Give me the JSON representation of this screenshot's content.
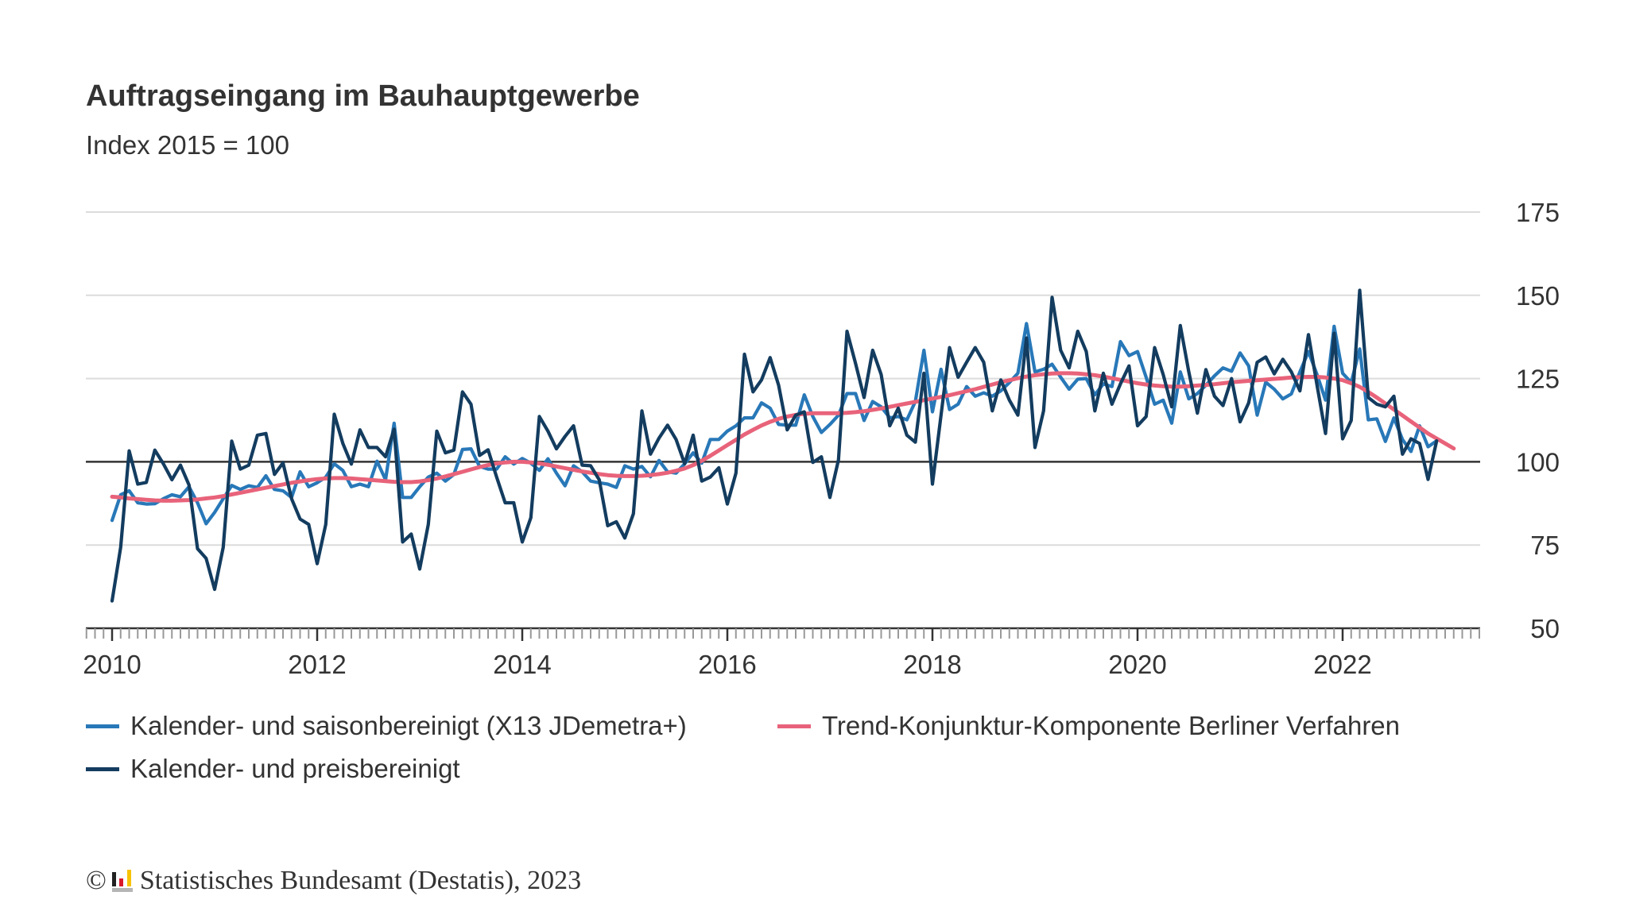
{
  "chart_data": {
    "type": "line",
    "title": "Auftragseingang im Bauhauptgewerbe",
    "subtitle": "Index 2015 = 100",
    "x_start": "2010-01",
    "x_end": "2022-12",
    "x_frequency": "monthly",
    "x_tick_labels": [
      "2010",
      "2012",
      "2014",
      "2016",
      "2018",
      "2020",
      "2022"
    ],
    "y_tick_labels": [
      "50",
      "75",
      "100",
      "125",
      "150",
      "175"
    ],
    "ylim": [
      50,
      175
    ],
    "reference_line": 100,
    "grid": true,
    "legend_position": "bottom",
    "series": [
      {
        "name": "Kalender- und saisonbereinigt (X13 JDemetra+)",
        "color": "#2878b8",
        "values": [
          82.4,
          90.1,
          91.3,
          87.7,
          87.3,
          87.4,
          88.9,
          90.1,
          89.5,
          92.5,
          87.7,
          81.4,
          84.8,
          88.9,
          92.9,
          91.7,
          92.8,
          92.3,
          95.8,
          91.7,
          91.3,
          89.3,
          97,
          92.5,
          93.7,
          95.4,
          99.4,
          97.4,
          92.5,
          93.3,
          92.5,
          100.2,
          94.6,
          111.6,
          89.3,
          89.3,
          92.5,
          95.4,
          96.6,
          94.2,
          96.2,
          103.7,
          103.9,
          98.6,
          97.8,
          97.8,
          101.5,
          99.3,
          101,
          99.6,
          97.4,
          100.9,
          96.6,
          92.8,
          98.8,
          97,
          94.2,
          93.7,
          93.3,
          92.3,
          98.8,
          97.8,
          98.6,
          95.5,
          100.4,
          97,
          96.6,
          99.4,
          102.7,
          99.6,
          106.7,
          106.7,
          109.2,
          110.8,
          113.2,
          113.2,
          117.7,
          116.1,
          111.2,
          111,
          111,
          120.1,
          113.6,
          108.8,
          111.2,
          114,
          120.5,
          120.5,
          112.4,
          118.1,
          116.5,
          113.2,
          113.6,
          112.6,
          118.1,
          133.5,
          115,
          127.8,
          115.7,
          117.3,
          122.6,
          119.7,
          120.7,
          119.7,
          121.3,
          123.8,
          126.6,
          141.5,
          127,
          127.8,
          129.3,
          125.4,
          121.8,
          124.8,
          125,
          120.1,
          123.4,
          122.6,
          136.1,
          131.9,
          133.1,
          125.4,
          117.3,
          118.5,
          111.6,
          127,
          118.9,
          120.5,
          123,
          125.8,
          128.2,
          127.2,
          132.7,
          128.8,
          114,
          123.9,
          121.8,
          118.9,
          120.4,
          127,
          133.1,
          126.2,
          118.5,
          140.7,
          126.6,
          123.8,
          133.9,
          112.6,
          112.9,
          106.1,
          113.2,
          106.7,
          103.1,
          110.8,
          104.5,
          106.3
        ]
      },
      {
        "name": "Trend-Konjunktur-Komponente Berliner Verfahren",
        "color": "#e8637a",
        "values": [
          89.5,
          89.3,
          89,
          88.8,
          88.6,
          88.4,
          88.3,
          88.3,
          88.4,
          88.5,
          88.7,
          89,
          89.3,
          89.7,
          90.2,
          90.7,
          91.2,
          91.7,
          92.2,
          92.7,
          93.2,
          93.7,
          94.1,
          94.5,
          94.8,
          95,
          95.1,
          95.1,
          95,
          94.8,
          94.6,
          94.4,
          94.2,
          94,
          93.9,
          93.9,
          94.1,
          94.5,
          95,
          95.6,
          96.3,
          97,
          97.7,
          98.4,
          99,
          99.5,
          99.8,
          100,
          100,
          99.8,
          99.5,
          99.1,
          98.6,
          98.1,
          97.6,
          97.1,
          96.7,
          96.3,
          96,
          95.8,
          95.7,
          95.7,
          95.8,
          96,
          96.3,
          96.7,
          97.3,
          98,
          99,
          100.3,
          101.8,
          103.4,
          105,
          106.6,
          108.2,
          109.6,
          110.9,
          112,
          112.9,
          113.6,
          114.1,
          114.4,
          114.6,
          114.6,
          114.6,
          114.6,
          114.7,
          114.9,
          115.2,
          115.6,
          116,
          116.5,
          117,
          117.5,
          118,
          118.5,
          119,
          119.5,
          120,
          120.6,
          121.2,
          121.8,
          122.5,
          123.2,
          123.9,
          124.5,
          125.1,
          125.6,
          126,
          126.3,
          126.5,
          126.6,
          126.6,
          126.5,
          126.3,
          126,
          125.6,
          125.1,
          124.6,
          124.1,
          123.6,
          123.2,
          122.9,
          122.7,
          122.6,
          122.6,
          122.7,
          122.9,
          123.1,
          123.3,
          123.6,
          123.9,
          124.1,
          124.3,
          124.5,
          124.7,
          124.9,
          125.1,
          125.3,
          125.4,
          125.5,
          125.5,
          125.3,
          125,
          124.5,
          123.6,
          122.5,
          121,
          119.3,
          117.5,
          115.7,
          113.9,
          112.1,
          110.3,
          108.5,
          107,
          105.5,
          104
        ]
      },
      {
        "name": "Kalender- und preisbereinigt",
        "color": "#133c5f",
        "values": [
          58.2,
          74.3,
          103.3,
          93.3,
          93.8,
          103.5,
          99.4,
          94.6,
          99,
          93,
          73.9,
          71,
          61.7,
          74.3,
          106.2,
          97.8,
          99,
          108,
          108.5,
          96.2,
          99.7,
          88.9,
          82.8,
          81.2,
          69.4,
          81.2,
          114.3,
          105.5,
          99.3,
          109.6,
          104.3,
          104.3,
          101.5,
          109.8,
          75.9,
          78.3,
          67.8,
          81.2,
          109.2,
          102.7,
          103.5,
          121,
          117.3,
          101.9,
          103.6,
          95.4,
          87.7,
          87.7,
          75.9,
          83.2,
          113.6,
          109.2,
          103.9,
          107.6,
          110.8,
          99,
          98.8,
          94.6,
          80.8,
          82,
          77.1,
          84.4,
          115.3,
          102.3,
          107.1,
          111,
          106.7,
          99.4,
          108,
          94.2,
          95.4,
          98.2,
          87.3,
          96.6,
          132.3,
          121,
          124.6,
          131.3,
          123,
          109.6,
          114,
          115,
          99.8,
          101.5,
          89.3,
          100.6,
          139.2,
          129.5,
          119.3,
          133.5,
          126.2,
          110.8,
          116.1,
          108,
          105.9,
          126.6,
          93.3,
          114,
          134.3,
          125.4,
          129.9,
          134.3,
          129.9,
          115.3,
          124.6,
          118.5,
          114,
          137.2,
          104.3,
          115.3,
          149.4,
          133.5,
          128.2,
          139.2,
          133.1,
          115.3,
          126.6,
          117.3,
          123.4,
          128.8,
          110.8,
          113.6,
          134.3,
          126.2,
          116.5,
          140.9,
          127,
          114.6,
          127.7,
          119.7,
          116.9,
          125,
          112,
          117.7,
          129.9,
          131.5,
          126.4,
          130.8,
          127,
          121.3,
          138.2,
          123,
          108.5,
          138.6,
          106.9,
          112.4,
          151.5,
          119.3,
          117.3,
          116.5,
          119.7,
          102.3,
          106.9,
          105.5,
          94.7,
          106.3
        ]
      }
    ]
  },
  "footer": {
    "copyright_symbol": "©",
    "source": "Statistisches Bundesamt (Destatis), 2023",
    "logo_icon": "destatis-logo-icon",
    "logo_colors": [
      "#222222",
      "#d9182a",
      "#f7c200",
      "#b5b5b5"
    ]
  }
}
